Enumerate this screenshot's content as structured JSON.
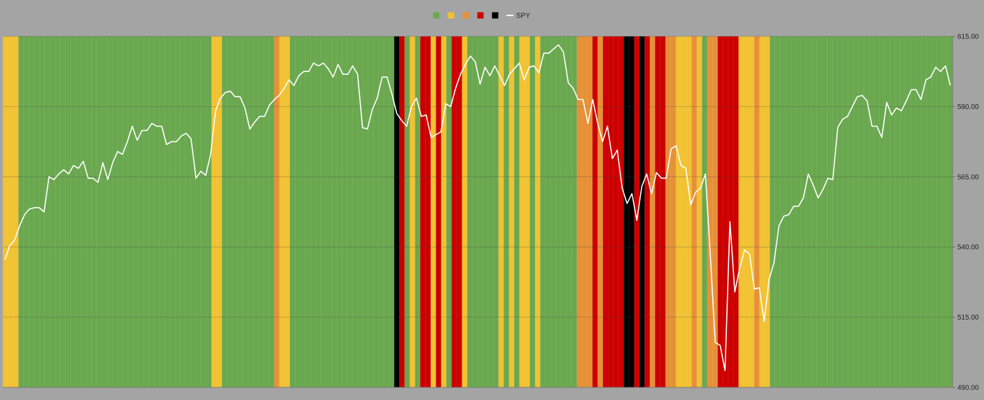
{
  "chart_data": {
    "type": "line",
    "title": "",
    "xlabel": "",
    "ylabel": "",
    "ylim": [
      490,
      615
    ],
    "yticks": [
      "615.00",
      "590.00",
      "565.00",
      "540.00",
      "515.00",
      "490.00"
    ],
    "legend": {
      "placement": "top-center",
      "entries": [
        {
          "name": "",
          "color": "#6aa84f",
          "swatch": "square"
        },
        {
          "name": "",
          "color": "#f1c232",
          "swatch": "square"
        },
        {
          "name": "",
          "color": "#e69138",
          "swatch": "square"
        },
        {
          "name": "",
          "color": "#cc0000",
          "swatch": "square"
        },
        {
          "name": "",
          "color": "#000000",
          "swatch": "square"
        },
        {
          "name": "SPY",
          "color": "#ffffff",
          "swatch": "line"
        }
      ]
    },
    "regime_colors": {
      "G": "#6aa84f",
      "Y": "#f1c232",
      "O": "#e69138",
      "R": "#cc0000",
      "K": "#000000"
    },
    "regime_bands": "YYYGGGGGGGGGGGGGGGGGGGGGGGGGGGGGGGGGGGGGYYGGGGGGGGGGOYYGGGGGGGGGGGGGGGGGGGGKRGYGRRYRYGRRYGGGGGGYGYGYYGYGGGGGGGOOORORRRRKKRKRORROOYYYOYGOORRRRYYYOYYGGGGGGGGGGGGGGGGGGGGGGGGGGGGGGGGGGG",
    "series": [
      {
        "name": "SPY",
        "color": "#ffffff",
        "values": [
          535.5,
          540.5,
          542.5,
          547.5,
          551.5,
          553.5,
          554.0,
          554.0,
          552.5,
          565.0,
          564.0,
          566.0,
          567.5,
          566.0,
          569.0,
          568.0,
          570.5,
          564.5,
          564.5,
          563.0,
          570.0,
          564.0,
          570.0,
          574.0,
          573.0,
          577.5,
          583.0,
          578.0,
          581.5,
          581.5,
          584.0,
          583.0,
          583.0,
          576.5,
          577.5,
          577.5,
          579.5,
          580.5,
          578.5,
          564.5,
          567.0,
          565.5,
          573.0,
          588.5,
          593.0,
          595.0,
          595.5,
          593.5,
          593.5,
          589.5,
          582.0,
          584.5,
          586.5,
          586.5,
          590.5,
          592.5,
          594.0,
          596.5,
          599.5,
          597.5,
          601.0,
          602.5,
          602.5,
          605.5,
          604.5,
          605.5,
          603.5,
          600.5,
          605.0,
          601.5,
          601.5,
          604.5,
          601.5,
          582.5,
          582.0,
          589.0,
          593.0,
          600.5,
          600.5,
          594.5,
          587.5,
          585.0,
          583.0,
          590.0,
          593.0,
          586.5,
          587.0,
          579.0,
          580.0,
          581.0,
          591.0,
          590.0,
          596.5,
          601.5,
          605.0,
          608.0,
          606.0,
          598.0,
          604.0,
          601.0,
          604.5,
          601.0,
          597.5,
          601.5,
          603.5,
          605.5,
          599.5,
          604.0,
          604.5,
          602.0,
          609.0,
          609.0,
          610.5,
          612.0,
          609.5,
          598.5,
          596.5,
          592.5,
          592.5,
          584.0,
          592.5,
          584.0,
          577.5,
          583.0,
          571.5,
          574.5,
          561.0,
          555.5,
          559.0,
          549.5,
          561.5,
          566.0,
          559.0,
          566.5,
          564.5,
          564.5,
          575.0,
          576.0,
          569.0,
          568.0,
          555.0,
          559.5,
          561.0,
          566.0,
          537.0,
          506.0,
          505.0,
          496.0,
          549.0,
          524.0,
          532.5,
          539.0,
          537.5,
          525.0,
          525.5,
          513.5,
          528.5,
          534.5,
          547.5,
          551.0,
          551.5,
          554.5,
          554.5,
          557.5,
          566.0,
          562.0,
          557.5,
          560.5,
          564.5,
          564.0,
          582.5,
          585.5,
          586.5,
          590.0,
          593.5,
          594.0,
          592.0,
          583.0,
          583.0,
          579.0,
          591.5,
          587.0,
          589.5,
          588.5,
          592.0,
          596.0,
          596.0,
          592.5,
          599.5,
          600.5,
          604.0,
          602.5,
          604.5,
          597.5
        ]
      }
    ]
  }
}
